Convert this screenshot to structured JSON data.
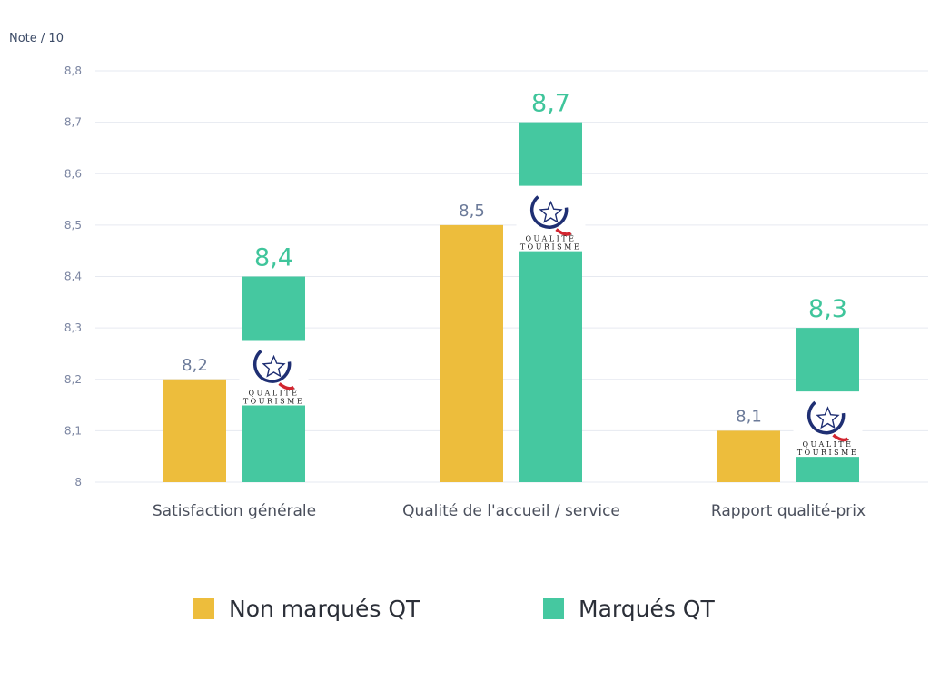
{
  "chart_data": {
    "type": "bar",
    "ylabel": "Note / 10",
    "ylim": [
      8,
      8.8
    ],
    "ytick_labels": [
      "8",
      "8,1",
      "8,2",
      "8,3",
      "8,4",
      "8,5",
      "8,6",
      "8,7",
      "8,8"
    ],
    "categories": [
      "Satisfaction générale",
      "Qualité de l'accueil / service",
      "Rapport qualité-prix"
    ],
    "series": [
      {
        "name": "Non marqués QT",
        "color": "#edbd3c",
        "values": [
          8.2,
          8.5,
          8.1
        ],
        "labels": [
          "8,2",
          "8,5",
          "8,1"
        ]
      },
      {
        "name": "Marqués QT",
        "color": "#45c8a0",
        "values": [
          8.4,
          8.7,
          8.3
        ],
        "labels": [
          "8,4",
          "8,7",
          "8,3"
        ]
      }
    ],
    "grid": true,
    "legend_position": "bottom",
    "logo": {
      "icon": "qualite-tourisme-logo",
      "text_top": "QUALITÉ",
      "text_bottom": "TOURISME"
    }
  }
}
